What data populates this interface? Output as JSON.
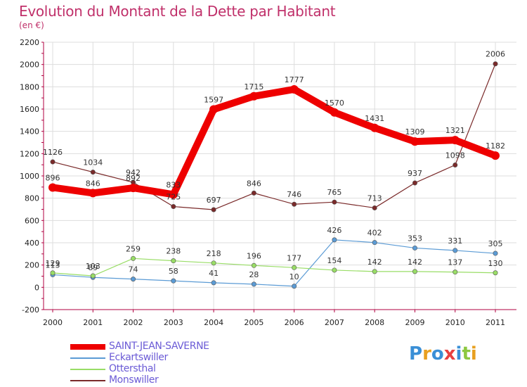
{
  "chart_data": {
    "type": "line",
    "title": "Evolution du Montant de la Dette par Habitant",
    "subtitle": "(en €)",
    "x": [
      "2000",
      "2001",
      "2002",
      "2003",
      "2004",
      "2005",
      "2006",
      "2007",
      "2008",
      "2009",
      "2010",
      "2011"
    ],
    "ylim": [
      -200,
      2200
    ],
    "yticks": [
      -200,
      0,
      200,
      400,
      600,
      800,
      1000,
      1200,
      1400,
      1600,
      1800,
      2000,
      2200
    ],
    "grid": true,
    "legend_position": "bottom-left",
    "series": [
      {
        "name": "SAINT-JEAN-SAVERNE",
        "color": "#ee0000",
        "values": [
          896,
          846,
          892,
          833,
          1597,
          1715,
          1777,
          1570,
          1431,
          1309,
          1321,
          1182
        ]
      },
      {
        "name": "Eckartswiller",
        "color": "#5b9bd5",
        "values": [
          113,
          89,
          74,
          58,
          41,
          28,
          10,
          426,
          402,
          353,
          331,
          305
        ]
      },
      {
        "name": "Ottersthal",
        "color": "#99dd66",
        "values": [
          129,
          103,
          259,
          238,
          218,
          196,
          177,
          154,
          142,
          142,
          137,
          130
        ]
      },
      {
        "name": "Monswiller",
        "color": "#7a2a2a",
        "values": [
          1126,
          1034,
          942,
          725,
          697,
          846,
          746,
          765,
          713,
          937,
          1098,
          2006
        ]
      }
    ]
  },
  "logo": {
    "letters": [
      "P",
      "r",
      "o",
      "x",
      "i",
      "t",
      "i"
    ],
    "colors": [
      "#3a8fd6",
      "#e8a020",
      "#3a8fd6",
      "#e84040",
      "#3a8fd6",
      "#8cc840",
      "#e8a020"
    ]
  }
}
